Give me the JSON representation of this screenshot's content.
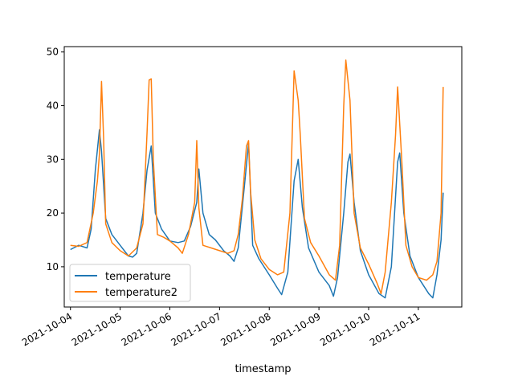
{
  "chart_data": {
    "type": "line",
    "title": "",
    "xlabel": "timestamp",
    "ylabel": "",
    "x_ticks": [
      "2021-10-04",
      "2021-10-05",
      "2021-10-06",
      "2021-10-07",
      "2021-10-08",
      "2021-10-09",
      "2021-10-10",
      "2021-10-11"
    ],
    "xlim": [
      "2021-10-03T21:00",
      "2021-10-11T21:00"
    ],
    "y_ticks": [
      10,
      20,
      30,
      40,
      50
    ],
    "ylim": [
      2.5,
      51
    ],
    "grid": false,
    "legend_position": "lower left",
    "series": [
      {
        "name": "temperature",
        "color": "#1f77b4",
        "points": [
          [
            "2021-10-04T00:00",
            13.2
          ],
          [
            "2021-10-04T04:00",
            14.0
          ],
          [
            "2021-10-04T08:00",
            13.5
          ],
          [
            "2021-10-04T10:00",
            17.0
          ],
          [
            "2021-10-04T12:00",
            28.0
          ],
          [
            "2021-10-04T14:00",
            35.5
          ],
          [
            "2021-10-04T15:00",
            31.5
          ],
          [
            "2021-10-04T17:00",
            19.0
          ],
          [
            "2021-10-04T20:00",
            16.0
          ],
          [
            "2021-10-05T00:00",
            14.0
          ],
          [
            "2021-10-05T04:00",
            12.0
          ],
          [
            "2021-10-05T06:00",
            11.8
          ],
          [
            "2021-10-05T08:00",
            12.5
          ],
          [
            "2021-10-05T11:00",
            20.0
          ],
          [
            "2021-10-05T13:00",
            28.0
          ],
          [
            "2021-10-05T15:00",
            32.5
          ],
          [
            "2021-10-05T17:00",
            20.0
          ],
          [
            "2021-10-05T20:00",
            17.0
          ],
          [
            "2021-10-06T00:00",
            14.8
          ],
          [
            "2021-10-06T04:00",
            14.5
          ],
          [
            "2021-10-06T07:00",
            14.8
          ],
          [
            "2021-10-06T10:00",
            17.5
          ],
          [
            "2021-10-06T13:00",
            22.0
          ],
          [
            "2021-10-06T14:00",
            28.2
          ],
          [
            "2021-10-06T16:00",
            20.0
          ],
          [
            "2021-10-06T19:00",
            16.0
          ],
          [
            "2021-10-06T22:00",
            15.0
          ],
          [
            "2021-10-07T02:00",
            13.0
          ],
          [
            "2021-10-07T05:00",
            12.0
          ],
          [
            "2021-10-07T07:00",
            11.0
          ],
          [
            "2021-10-07T09:00",
            13.5
          ],
          [
            "2021-10-07T12:00",
            25.0
          ],
          [
            "2021-10-07T14:00",
            33.0
          ],
          [
            "2021-10-07T16:00",
            14.0
          ],
          [
            "2021-10-07T19:00",
            11.5
          ],
          [
            "2021-10-08T00:00",
            8.5
          ],
          [
            "2021-10-08T04:00",
            6.0
          ],
          [
            "2021-10-08T06:00",
            4.8
          ],
          [
            "2021-10-08T09:00",
            9.0
          ],
          [
            "2021-10-08T12:00",
            26.0
          ],
          [
            "2021-10-08T14:00",
            30.0
          ],
          [
            "2021-10-08T16:00",
            21.0
          ],
          [
            "2021-10-08T19:00",
            13.5
          ],
          [
            "2021-10-09T00:00",
            9.0
          ],
          [
            "2021-10-09T05:00",
            6.5
          ],
          [
            "2021-10-09T07:00",
            4.5
          ],
          [
            "2021-10-09T09:00",
            8.0
          ],
          [
            "2021-10-09T12:00",
            20.0
          ],
          [
            "2021-10-09T14:00",
            29.5
          ],
          [
            "2021-10-09T15:00",
            31.0
          ],
          [
            "2021-10-09T17:00",
            22.0
          ],
          [
            "2021-10-09T20:00",
            13.0
          ],
          [
            "2021-10-10T00:00",
            8.5
          ],
          [
            "2021-10-10T05:00",
            5.0
          ],
          [
            "2021-10-10T08:00",
            4.2
          ],
          [
            "2021-10-10T11:00",
            10.0
          ],
          [
            "2021-10-10T14:00",
            29.5
          ],
          [
            "2021-10-10T15:00",
            31.2
          ],
          [
            "2021-10-10T17:00",
            20.0
          ],
          [
            "2021-10-10T20:00",
            12.0
          ],
          [
            "2021-10-11T00:00",
            8.0
          ],
          [
            "2021-10-11T05:00",
            5.0
          ],
          [
            "2021-10-11T07:00",
            4.2
          ],
          [
            "2021-10-11T09:00",
            8.5
          ],
          [
            "2021-10-11T11:00",
            15.0
          ],
          [
            "2021-10-11T12:00",
            23.8
          ]
        ]
      },
      {
        "name": "temperature2",
        "color": "#ff7f0e",
        "points": [
          [
            "2021-10-04T00:00",
            14.0
          ],
          [
            "2021-10-04T04:00",
            13.8
          ],
          [
            "2021-10-04T08:00",
            14.5
          ],
          [
            "2021-10-04T11:00",
            20.0
          ],
          [
            "2021-10-04T13:00",
            26.0
          ],
          [
            "2021-10-04T14:00",
            31.0
          ],
          [
            "2021-10-04T15:00",
            44.5
          ],
          [
            "2021-10-04T16:00",
            34.0
          ],
          [
            "2021-10-04T17:00",
            18.0
          ],
          [
            "2021-10-04T20:00",
            14.5
          ],
          [
            "2021-10-05T00:00",
            13.0
          ],
          [
            "2021-10-05T04:00",
            12.0
          ],
          [
            "2021-10-05T08:00",
            13.5
          ],
          [
            "2021-10-05T11:00",
            18.0
          ],
          [
            "2021-10-05T13:00",
            35.0
          ],
          [
            "2021-10-05T14:00",
            44.8
          ],
          [
            "2021-10-05T15:00",
            45.0
          ],
          [
            "2021-10-05T16:00",
            30.0
          ],
          [
            "2021-10-05T18:00",
            16.0
          ],
          [
            "2021-10-05T21:00",
            15.5
          ],
          [
            "2021-10-06T00:00",
            14.8
          ],
          [
            "2021-10-06T04:00",
            13.5
          ],
          [
            "2021-10-06T06:00",
            12.5
          ],
          [
            "2021-10-06T09:00",
            16.0
          ],
          [
            "2021-10-06T12:00",
            22.0
          ],
          [
            "2021-10-06T13:00",
            33.5
          ],
          [
            "2021-10-06T14:00",
            21.0
          ],
          [
            "2021-10-06T16:00",
            14.0
          ],
          [
            "2021-10-06T20:00",
            13.5
          ],
          [
            "2021-10-07T00:00",
            13.0
          ],
          [
            "2021-10-07T04:00",
            12.5
          ],
          [
            "2021-10-07T07:00",
            13.0
          ],
          [
            "2021-10-07T09:00",
            16.0
          ],
          [
            "2021-10-07T11:00",
            22.5
          ],
          [
            "2021-10-07T13:00",
            32.5
          ],
          [
            "2021-10-07T14:00",
            33.5
          ],
          [
            "2021-10-07T15:00",
            24.0
          ],
          [
            "2021-10-07T17:00",
            15.0
          ],
          [
            "2021-10-07T20:00",
            11.5
          ],
          [
            "2021-10-08T00:00",
            9.5
          ],
          [
            "2021-10-08T04:00",
            8.5
          ],
          [
            "2021-10-08T07:00",
            9.0
          ],
          [
            "2021-10-08T10:00",
            20.0
          ],
          [
            "2021-10-08T12:00",
            46.5
          ],
          [
            "2021-10-08T14:00",
            41.0
          ],
          [
            "2021-10-08T15:00",
            34.5
          ],
          [
            "2021-10-08T17:00",
            19.0
          ],
          [
            "2021-10-08T20:00",
            14.5
          ],
          [
            "2021-10-09T00:00",
            12.0
          ],
          [
            "2021-10-09T05:00",
            8.5
          ],
          [
            "2021-10-09T08:00",
            7.5
          ],
          [
            "2021-10-09T10:00",
            14.0
          ],
          [
            "2021-10-09T12:00",
            40.0
          ],
          [
            "2021-10-09T13:00",
            48.5
          ],
          [
            "2021-10-09T15:00",
            41.0
          ],
          [
            "2021-10-09T17:00",
            20.0
          ],
          [
            "2021-10-09T20:00",
            13.5
          ],
          [
            "2021-10-10T00:00",
            10.5
          ],
          [
            "2021-10-10T04:00",
            7.0
          ],
          [
            "2021-10-10T06:00",
            5.0
          ],
          [
            "2021-10-10T08:00",
            9.0
          ],
          [
            "2021-10-10T11:00",
            22.0
          ],
          [
            "2021-10-10T13:00",
            34.5
          ],
          [
            "2021-10-10T14:00",
            43.5
          ],
          [
            "2021-10-10T16:00",
            30.0
          ],
          [
            "2021-10-10T18:00",
            14.0
          ],
          [
            "2021-10-10T21:00",
            10.0
          ],
          [
            "2021-10-11T00:00",
            8.0
          ],
          [
            "2021-10-11T04:00",
            7.5
          ],
          [
            "2021-10-11T07:00",
            8.5
          ],
          [
            "2021-10-11T09:00",
            11.0
          ],
          [
            "2021-10-11T11:00",
            20.0
          ],
          [
            "2021-10-11T12:00",
            43.5
          ]
        ]
      }
    ]
  }
}
